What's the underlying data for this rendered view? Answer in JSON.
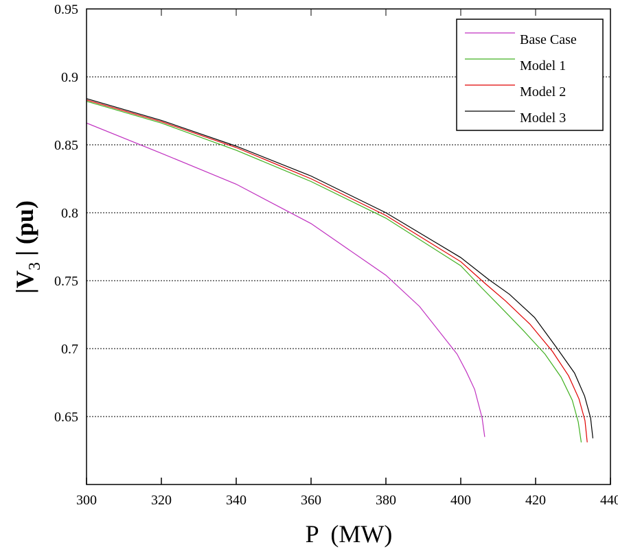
{
  "chart_data": {
    "type": "line",
    "title": "",
    "xlabel": "P  (MW)",
    "ylabel": {
      "pre": "|V",
      "sub": "3",
      "post": " | (pu)"
    },
    "xlim": [
      300,
      440
    ],
    "ylim": [
      0.6,
      0.95
    ],
    "xticks": [
      300,
      320,
      340,
      360,
      380,
      400,
      420,
      440
    ],
    "yticks": [
      0.65,
      0.7,
      0.75,
      0.8,
      0.85,
      0.9,
      0.95
    ],
    "ytick_labels": [
      "0.65",
      "0.7",
      "0.75",
      "0.8",
      "0.85",
      "0.9",
      "0.95"
    ],
    "grid": "horizontal dotted",
    "legend_position": "top-right",
    "series": [
      {
        "name": "Base Case",
        "color": "#c030c0",
        "x": [
          300,
          319.8,
          340,
          360,
          380,
          389,
          399,
          401.5,
          403.7,
          405.7,
          406.4
        ],
        "y": [
          0.866,
          0.844,
          0.821,
          0.792,
          0.754,
          0.731,
          0.696,
          0.683,
          0.67,
          0.649,
          0.635
        ]
      },
      {
        "name": "Model 1",
        "color": "#40b020",
        "x": [
          300,
          320,
          340,
          360,
          380,
          400,
          405.5,
          410.5,
          416.5,
          422.5,
          426.8,
          429.8,
          431.4,
          432.2
        ],
        "y": [
          0.882,
          0.866,
          0.846,
          0.823,
          0.796,
          0.761,
          0.745,
          0.731,
          0.714,
          0.696,
          0.679,
          0.662,
          0.646,
          0.631
        ]
      },
      {
        "name": "Model 2",
        "color": "#e00000",
        "x": [
          300,
          320,
          340,
          360,
          380,
          400,
          406.5,
          412,
          418.5,
          424.5,
          428.8,
          431.6,
          433.2,
          433.8
        ],
        "y": [
          0.883,
          0.867,
          0.848,
          0.825,
          0.798,
          0.764,
          0.748,
          0.735,
          0.718,
          0.698,
          0.68,
          0.663,
          0.647,
          0.631
        ]
      },
      {
        "name": "Model 3",
        "color": "#000000",
        "x": [
          300,
          320,
          340,
          360,
          380,
          400,
          407.4,
          413,
          419.7,
          425.8,
          430.4,
          433.1,
          434.7,
          435.3
        ],
        "y": [
          0.884,
          0.868,
          0.849,
          0.827,
          0.8,
          0.767,
          0.751,
          0.74,
          0.723,
          0.7,
          0.682,
          0.665,
          0.649,
          0.634
        ]
      }
    ]
  }
}
